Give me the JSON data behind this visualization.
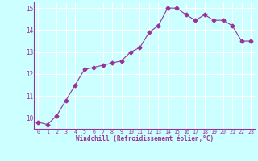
{
  "x": [
    0,
    1,
    2,
    3,
    4,
    5,
    6,
    7,
    8,
    9,
    10,
    11,
    12,
    13,
    14,
    15,
    16,
    17,
    18,
    19,
    20,
    21,
    22,
    23
  ],
  "y": [
    9.8,
    9.7,
    10.1,
    10.8,
    11.5,
    12.2,
    12.3,
    12.4,
    12.5,
    12.6,
    13.0,
    13.2,
    13.9,
    14.2,
    15.0,
    15.0,
    14.7,
    14.45,
    14.7,
    14.45,
    14.45,
    14.2,
    13.5,
    13.5
  ],
  "line_color": "#993399",
  "marker": "D",
  "marker_size": 2.5,
  "bg_color": "#ccffff",
  "grid_color": "#aadddd",
  "xlabel": "Windchill (Refroidissement éolien,°C)",
  "xlabel_color": "#993399",
  "tick_color": "#993399",
  "ylim": [
    9.5,
    15.3
  ],
  "xlim": [
    -0.5,
    23.5
  ],
  "yticks": [
    10,
    11,
    12,
    13,
    14,
    15
  ],
  "xticks": [
    0,
    1,
    2,
    3,
    4,
    5,
    6,
    7,
    8,
    9,
    10,
    11,
    12,
    13,
    14,
    15,
    16,
    17,
    18,
    19,
    20,
    21,
    22,
    23
  ]
}
